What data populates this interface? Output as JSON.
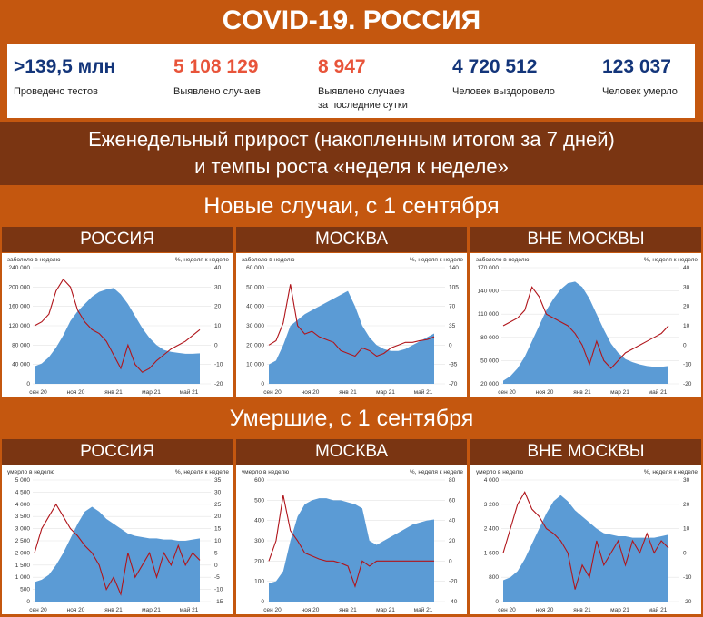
{
  "title": "COVID-19. РОССИЯ",
  "stats": [
    {
      "value": ">139,5 млн",
      "label": "Проведено тестов",
      "color": "#13357a"
    },
    {
      "value": "5 108 129",
      "label": "Выявлено случаев",
      "color": "#e8543a"
    },
    {
      "value": "8 947",
      "label": "Выявлено случаев за последние сутки",
      "label_lines": [
        "Выявлено случаев",
        "за последние сутки"
      ],
      "color": "#e8543a"
    },
    {
      "value": "4 720 512",
      "label": "Человек выздоровело",
      "color": "#13357a"
    },
    {
      "value": "123 037",
      "label": "Человек умерло",
      "color": "#13357a"
    }
  ],
  "weekly_header": {
    "line1": "Еженедельный прирост (накопленным итогом за 7 дней)",
    "line2": "и темпы роста «неделя к неделе»"
  },
  "new_cases_header": "Новые случаи, с 1 сентября",
  "deaths_header": "Умершие, с 1 сентября",
  "colors": {
    "area": "#5b9bd5",
    "line": "#b0151b",
    "accent": "#c4570f",
    "dark": "#7a3512"
  },
  "chart_data": [
    {
      "type": "area",
      "title": "РОССИЯ",
      "ylabel": "заболело в неделю",
      "y2label": "%, неделя к неделе",
      "x_ticks": [
        "сен 20",
        "ноя 20",
        "янв 21",
        "мар 21",
        "май 21"
      ],
      "ylim": [
        0,
        240000
      ],
      "y_ticks": [
        "0",
        "40 000",
        "80 000",
        "120 000",
        "160 000",
        "200 000",
        "240 000"
      ],
      "y2lim": [
        -20,
        40
      ],
      "y2_ticks": [
        "-20",
        "-10",
        "0",
        "10",
        "20",
        "30",
        "40"
      ],
      "series": [
        {
          "kind": "area",
          "values": [
            36000,
            42000,
            55000,
            75000,
            100000,
            130000,
            150000,
            165000,
            180000,
            190000,
            195000,
            198000,
            185000,
            165000,
            140000,
            115000,
            95000,
            80000,
            70000,
            66000,
            64000,
            62000,
            62000,
            63000
          ]
        },
        {
          "kind": "line",
          "values": [
            10,
            12,
            16,
            28,
            34,
            30,
            18,
            12,
            8,
            6,
            2,
            -5,
            -12,
            0,
            -10,
            -14,
            -12,
            -8,
            -5,
            -2,
            0,
            2,
            5,
            8
          ]
        }
      ]
    },
    {
      "type": "area",
      "title": "МОСКВА",
      "ylabel": "заболело в неделю",
      "y2label": "%, неделя к неделе",
      "x_ticks": [
        "сен 20",
        "ноя 20",
        "янв 21",
        "мар 21",
        "май 21"
      ],
      "ylim": [
        0,
        60000
      ],
      "y_ticks": [
        "0",
        "10 000",
        "20 000",
        "30 000",
        "40 000",
        "50 000",
        "60 000"
      ],
      "y2lim": [
        -70,
        140
      ],
      "y2_ticks": [
        "-70",
        "-35",
        "0",
        "35",
        "70",
        "105",
        "140"
      ],
      "series": [
        {
          "kind": "area",
          "values": [
            10000,
            12000,
            20000,
            30000,
            33000,
            36000,
            38000,
            40000,
            42000,
            44000,
            46000,
            48000,
            40000,
            30000,
            24000,
            20000,
            18000,
            17000,
            17000,
            18000,
            20000,
            22000,
            24000,
            26000
          ]
        },
        {
          "kind": "line",
          "values": [
            0,
            8,
            40,
            110,
            35,
            20,
            25,
            15,
            10,
            5,
            -10,
            -15,
            -20,
            -5,
            -10,
            -20,
            -15,
            -5,
            0,
            5,
            5,
            8,
            10,
            15
          ]
        }
      ]
    },
    {
      "type": "area",
      "title": "ВНЕ МОСКВЫ",
      "ylabel": "заболело в неделю",
      "y2label": "%, неделя к неделе",
      "x_ticks": [
        "сен 20",
        "ноя 20",
        "янв 21",
        "мар 21",
        "май 21"
      ],
      "ylim": [
        20000,
        170000
      ],
      "y_ticks": [
        "20 000",
        "50 000",
        "80 000",
        "110 000",
        "140 000",
        "170 000"
      ],
      "y2lim": [
        -20,
        40
      ],
      "y2_ticks": [
        "-20",
        "-10",
        "0",
        "10",
        "20",
        "30",
        "40"
      ],
      "series": [
        {
          "kind": "area",
          "values": [
            24000,
            30000,
            40000,
            55000,
            75000,
            95000,
            115000,
            130000,
            142000,
            150000,
            152000,
            145000,
            130000,
            110000,
            90000,
            72000,
            60000,
            52000,
            48000,
            45000,
            43000,
            42000,
            42000,
            43000
          ]
        },
        {
          "kind": "line",
          "values": [
            10,
            12,
            14,
            18,
            30,
            25,
            16,
            14,
            12,
            10,
            6,
            0,
            -10,
            2,
            -8,
            -12,
            -8,
            -4,
            -2,
            0,
            2,
            4,
            6,
            10
          ]
        }
      ]
    },
    {
      "type": "area",
      "title": "РОССИЯ",
      "ylabel": "умерло в неделю",
      "y2label": "%, неделя к неделе",
      "x_ticks": [
        "сен 20",
        "ноя 20",
        "янв 21",
        "мар 21",
        "май 21"
      ],
      "ylim": [
        0,
        5000
      ],
      "y_ticks": [
        "0",
        "500",
        "1 000",
        "1 500",
        "2 000",
        "2 500",
        "3 000",
        "3 500",
        "4 000",
        "4 500",
        "5 000"
      ],
      "y2lim": [
        -15,
        35
      ],
      "y2_ticks": [
        "-15",
        "-10",
        "-5",
        "0",
        "5",
        "10",
        "15",
        "20",
        "25",
        "30",
        "35"
      ],
      "series": [
        {
          "kind": "area",
          "values": [
            800,
            900,
            1100,
            1500,
            2000,
            2600,
            3200,
            3700,
            3900,
            3700,
            3400,
            3200,
            3000,
            2800,
            2700,
            2650,
            2600,
            2600,
            2550,
            2550,
            2500,
            2500,
            2550,
            2600
          ]
        },
        {
          "kind": "line",
          "values": [
            5,
            15,
            20,
            25,
            20,
            15,
            12,
            8,
            5,
            0,
            -10,
            -5,
            -12,
            5,
            -5,
            0,
            5,
            -5,
            5,
            0,
            8,
            0,
            5,
            2
          ]
        }
      ]
    },
    {
      "type": "area",
      "title": "МОСКВА",
      "ylabel": "умерло в неделю",
      "y2label": "%, неделя к неделе",
      "x_ticks": [
        "сен 20",
        "ноя 20",
        "янв 21",
        "мар 21",
        "май 21"
      ],
      "ylim": [
        0,
        600
      ],
      "y_ticks": [
        "0",
        "100",
        "200",
        "300",
        "400",
        "500",
        "600"
      ],
      "y2lim": [
        -40,
        80
      ],
      "y2_ticks": [
        "-40",
        "-20",
        "0",
        "20",
        "40",
        "60",
        "80"
      ],
      "series": [
        {
          "kind": "area",
          "values": [
            90,
            100,
            150,
            300,
            420,
            480,
            500,
            510,
            510,
            500,
            500,
            490,
            480,
            460,
            300,
            280,
            300,
            320,
            340,
            360,
            380,
            390,
            400,
            405
          ]
        },
        {
          "kind": "line",
          "values": [
            0,
            20,
            65,
            30,
            20,
            8,
            5,
            2,
            0,
            0,
            -2,
            -5,
            -25,
            0,
            -5,
            0,
            0,
            0,
            0,
            0,
            0,
            0,
            0,
            0
          ]
        }
      ]
    },
    {
      "type": "area",
      "title": "ВНЕ МОСКВЫ",
      "ylabel": "умерло в неделю",
      "y2label": "%, неделя к неделе",
      "x_ticks": [
        "сен 20",
        "ноя 20",
        "янв 21",
        "мар 21",
        "май 21"
      ],
      "ylim": [
        0,
        4000
      ],
      "y_ticks": [
        "0",
        "800",
        "1 600",
        "2 400",
        "3 200",
        "4 000"
      ],
      "y2lim": [
        -20,
        30
      ],
      "y2_ticks": [
        "-20",
        "-10",
        "0",
        "10",
        "20",
        "30"
      ],
      "series": [
        {
          "kind": "area",
          "values": [
            700,
            800,
            1000,
            1400,
            1900,
            2400,
            2900,
            3300,
            3500,
            3300,
            3000,
            2800,
            2600,
            2400,
            2250,
            2200,
            2150,
            2150,
            2100,
            2100,
            2100,
            2100,
            2150,
            2200
          ]
        },
        {
          "kind": "line",
          "values": [
            0,
            10,
            20,
            25,
            18,
            15,
            10,
            8,
            5,
            0,
            -15,
            -5,
            -10,
            5,
            -5,
            0,
            5,
            -5,
            5,
            0,
            8,
            0,
            5,
            2
          ]
        }
      ]
    }
  ]
}
